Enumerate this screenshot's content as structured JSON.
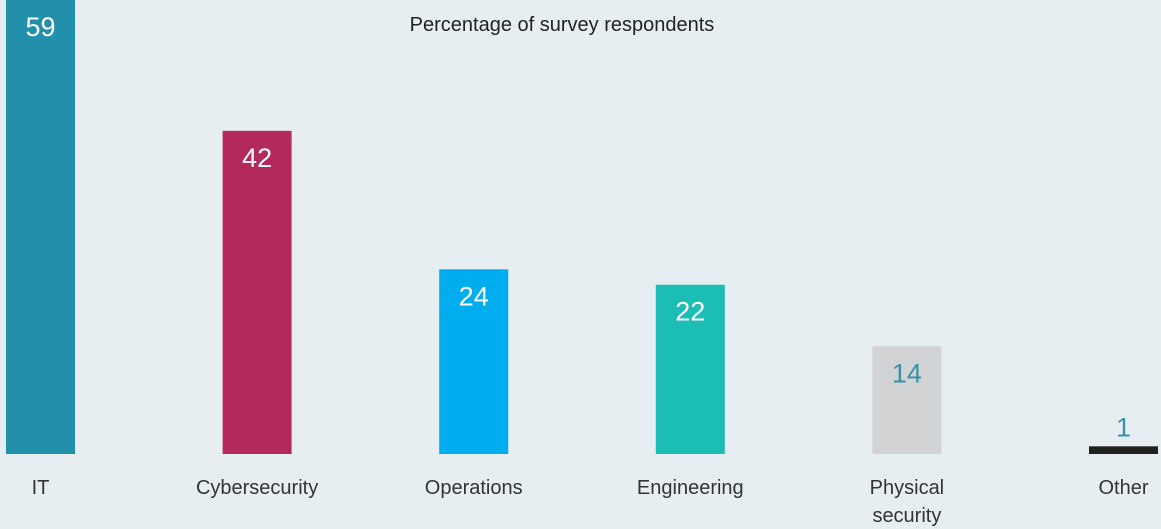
{
  "chart_data": {
    "type": "bar",
    "title": "Percentage of survey respondents",
    "categories": [
      [
        "IT"
      ],
      [
        "Cybersecurity"
      ],
      [
        "Operations"
      ],
      [
        "Engineering"
      ],
      [
        "Physical",
        "security"
      ],
      [
        "Other"
      ]
    ],
    "values": [
      59,
      42,
      24,
      22,
      14,
      1
    ],
    "value_labels": [
      "59",
      "42",
      "24",
      "22",
      "14",
      "1"
    ],
    "colors": [
      "#2290ab",
      "#b3295b",
      "#00adef",
      "#1bbdb4",
      "#d2d3d5",
      "#222222"
    ],
    "value_label_colors": [
      "#ffffff",
      "#ffffff",
      "#ffffff",
      "#ffffff",
      "#3a92a8",
      "#3a92a8"
    ],
    "ylim": [
      0,
      59
    ],
    "grid": false,
    "legend": "none"
  }
}
